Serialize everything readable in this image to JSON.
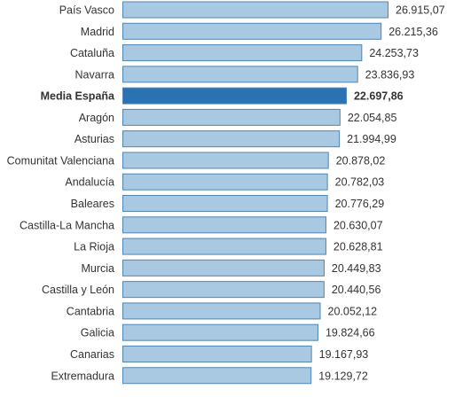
{
  "chart_data": {
    "type": "bar",
    "orientation": "horizontal",
    "title": "",
    "xlabel": "",
    "ylabel": "",
    "grid": false,
    "legend": "none",
    "xlim": [
      0,
      26915.07
    ],
    "colors": {
      "bar": "#a9c8e2",
      "highlight": "#2a72b3",
      "border": "#4f86b3"
    },
    "categories": [
      "País Vasco",
      "Madrid",
      "Cataluña",
      "Navarra",
      "Media España",
      "Aragón",
      "Asturias",
      "Comunitat Valenciana",
      "Andalucía",
      "Baleares",
      "Castilla-La Mancha",
      "La Rioja",
      "Murcia",
      "Castilla y León",
      "Cantabria",
      "Galicia",
      "Canarias",
      "Extremadura"
    ],
    "values": [
      26915.07,
      26215.36,
      24253.73,
      23836.93,
      22697.86,
      22054.85,
      21994.99,
      20878.02,
      20782.03,
      20776.29,
      20630.07,
      20628.81,
      20449.83,
      20440.56,
      20052.12,
      19824.66,
      19167.93,
      19129.72
    ],
    "value_labels": [
      "26.915,07",
      "26.215,36",
      "24.253,73",
      "23.836,93",
      "22.697,86",
      "22.054,85",
      "21.994,99",
      "20.878,02",
      "20.782,03",
      "20.776,29",
      "20.630,07",
      "20.628,81",
      "20.449,83",
      "20.440,56",
      "20.052,12",
      "19.824,66",
      "19.167,93",
      "19.129,72"
    ],
    "highlight": "Media España"
  }
}
